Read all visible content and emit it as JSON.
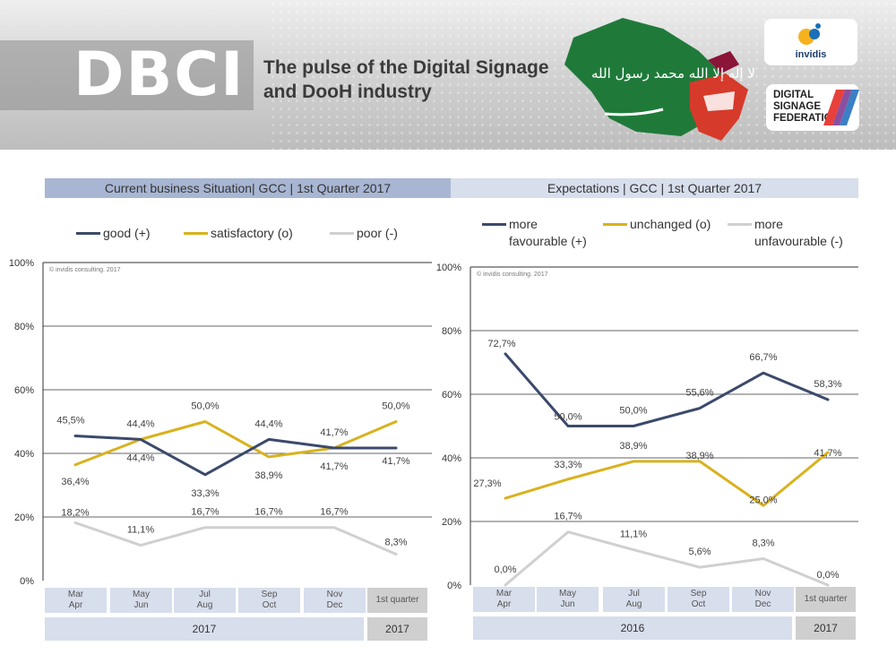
{
  "banner": {
    "logo": "DBCI",
    "tagline_line1": "The pulse of the Digital Signage",
    "tagline_line2": "and DooH industry",
    "flag_script": "لا إله إلا الله محمد رسول الله",
    "logo_invidis": "invidis",
    "logo_dsf_line1": "DIGITAL",
    "logo_dsf_line2": "SIGNAGE",
    "logo_dsf_line3": "FEDERATION"
  },
  "left_panel": {
    "header": "Current business Situation| GCC | 1st Quarter 2017",
    "legend": [
      "good (+)",
      "satisfactory (o)",
      "poor (-)"
    ],
    "watermark": "© invidis consulting. 2017",
    "year_main": "2017",
    "year_last": "2017"
  },
  "right_panel": {
    "header": "Expectations | GCC | 1st Quarter 2017",
    "legend_1a": "more",
    "legend_1b": "favourable (+)",
    "legend_2": "unchanged (o)",
    "legend_3a": "more",
    "legend_3b": "unfavourable (-)",
    "watermark": "© invidis consulting. 2017",
    "year_main": "2016",
    "year_last": "2017"
  },
  "colors": {
    "good": "#3b4a6b",
    "satisfactory": "#d9b21e",
    "poor": "#d0d0d0",
    "header_dark": "#a8b6d3",
    "header_light": "#d7deec"
  },
  "chart_data": [
    {
      "type": "line",
      "title": "Current business Situation| GCC | 1st Quarter 2017",
      "categories": [
        [
          "Mar",
          "Apr"
        ],
        [
          "May",
          "Jun"
        ],
        [
          "Jul",
          "Aug"
        ],
        [
          "Sep",
          "Oct"
        ],
        [
          "Nov",
          "Dec"
        ],
        [
          "1st quarter"
        ]
      ],
      "series": [
        {
          "name": "good (+)",
          "values": [
            45.5,
            44.4,
            33.3,
            44.4,
            41.7,
            41.7
          ],
          "labels": [
            "45,5%",
            "44,4%",
            "33,3%",
            "44,4%",
            "41,7%",
            "41,7%"
          ]
        },
        {
          "name": "satisfactory (o)",
          "values": [
            36.4,
            44.4,
            50.0,
            38.9,
            41.7,
            50.0
          ],
          "labels": [
            "36,4%",
            "44,4%",
            "50,0%",
            "38,9%",
            "41,7%",
            "50,0%"
          ]
        },
        {
          "name": "poor (-)",
          "values": [
            18.2,
            11.1,
            16.7,
            16.7,
            16.7,
            8.3
          ],
          "labels": [
            "18,2%",
            "11,1%",
            "16,7%",
            "16,7%",
            "16,7%",
            "8,3%"
          ]
        }
      ],
      "yticks": [
        "0%",
        "20%",
        "40%",
        "60%",
        "80%",
        "100%"
      ],
      "ylim": [
        0,
        100
      ],
      "grid": true,
      "legend": "top"
    },
    {
      "type": "line",
      "title": "Expectations | GCC | 1st Quarter 2017",
      "categories": [
        [
          "Mar",
          "Apr"
        ],
        [
          "May",
          "Jun"
        ],
        [
          "Jul",
          "Aug"
        ],
        [
          "Sep",
          "Oct"
        ],
        [
          "Nov",
          "Dec"
        ],
        [
          "1st quarter"
        ]
      ],
      "series": [
        {
          "name": "more favourable (+)",
          "values": [
            72.7,
            50.0,
            50.0,
            55.6,
            66.7,
            58.3
          ],
          "labels": [
            "72,7%",
            "50,0%",
            "50,0%",
            "55,6%",
            "66,7%",
            "58,3%"
          ]
        },
        {
          "name": "unchanged (o)",
          "values": [
            27.3,
            33.3,
            38.9,
            38.9,
            25.0,
            41.7
          ],
          "labels": [
            "27,3%",
            "33,3%",
            "38,9%",
            "38,9%",
            "25,0%",
            "41,7%"
          ]
        },
        {
          "name": "more unfavourable (-)",
          "values": [
            0.0,
            16.7,
            11.1,
            5.6,
            8.3,
            0.0
          ],
          "labels": [
            "0,0%",
            "16,7%",
            "11,1%",
            "5,6%",
            "8,3%",
            "0,0%"
          ]
        }
      ],
      "yticks": [
        "0%",
        "20%",
        "40%",
        "60%",
        "80%",
        "100%"
      ],
      "ylim": [
        0,
        100
      ],
      "grid": true,
      "legend": "top"
    }
  ]
}
